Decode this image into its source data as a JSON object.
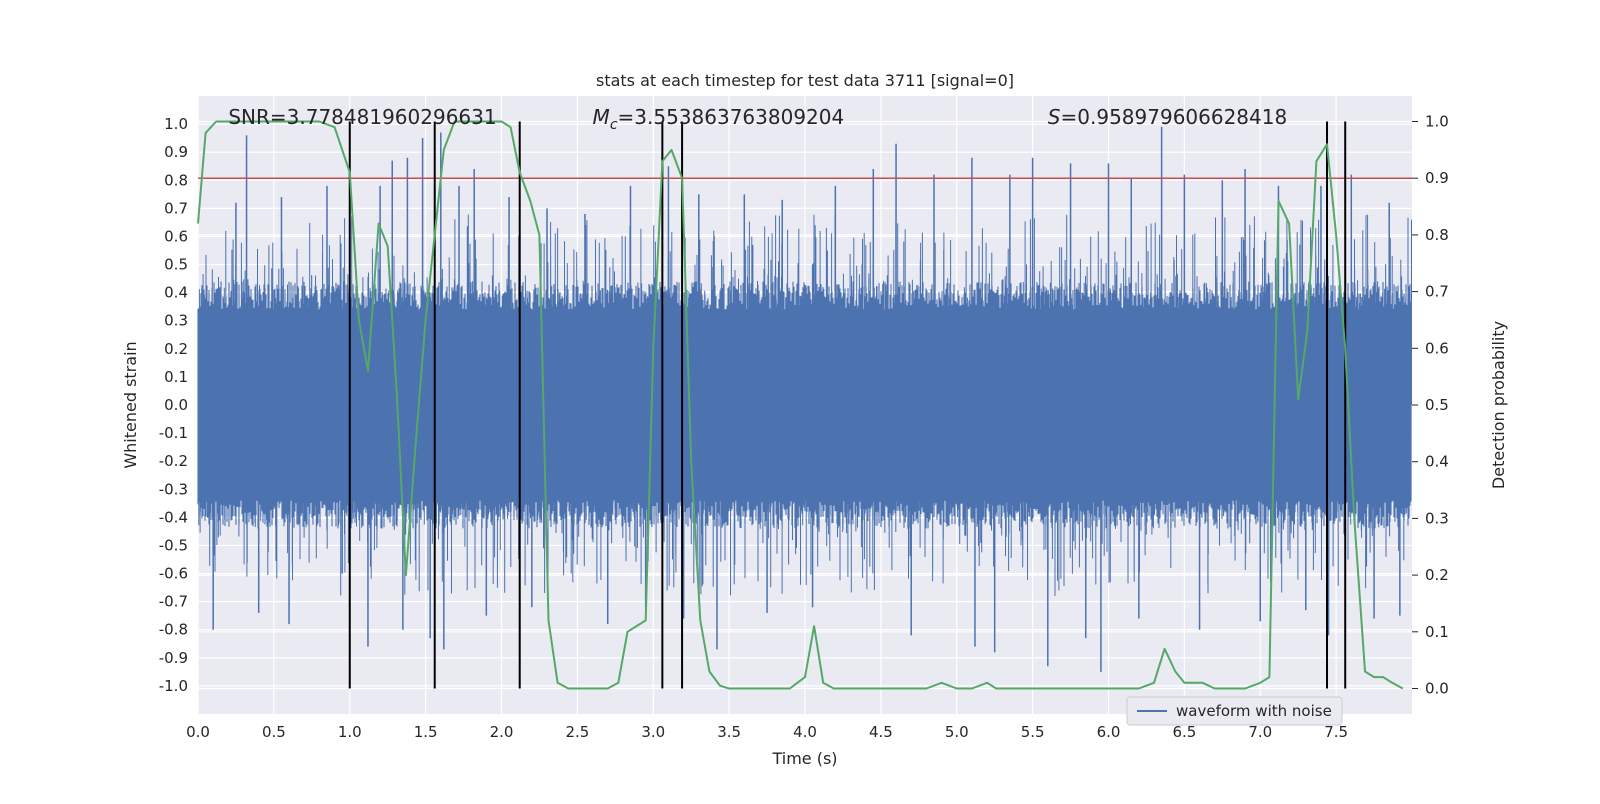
{
  "chart_data": {
    "type": "line",
    "title": "stats at each timestep for test data 3711 [signal=0]",
    "xlabel": "Time (s)",
    "ylabel": "Whitened strain",
    "y2label": "Detection probability",
    "xlim": [
      0.0,
      8.0
    ],
    "ylim": [
      -1.1,
      1.1
    ],
    "y2lim": [
      -0.045,
      1.045
    ],
    "xticks": [
      "0.0",
      "0.5",
      "1.0",
      "1.5",
      "2.0",
      "2.5",
      "3.0",
      "3.5",
      "4.0",
      "4.5",
      "5.0",
      "5.5",
      "6.0",
      "6.5",
      "7.0",
      "7.5"
    ],
    "yticks": [
      "1.0",
      "0.9",
      "0.8",
      "0.7",
      "0.6",
      "0.5",
      "0.4",
      "0.3",
      "0.2",
      "0.1",
      "0.0",
      "-0.1",
      "-0.2",
      "-0.3",
      "-0.4",
      "-0.5",
      "-0.6",
      "-0.7",
      "-0.8",
      "-0.9",
      "-1.0"
    ],
    "y2ticks": [
      "1.0",
      "0.9",
      "0.8",
      "0.7",
      "0.6",
      "0.5",
      "0.4",
      "0.3",
      "0.2",
      "0.1",
      "0.0"
    ],
    "annotations": {
      "snr": "SNR=3.778481960296631",
      "mc_symbol": "M",
      "mc_sub": "c",
      "mc_value": "=3.553863763809204",
      "s_symbol": "S",
      "s_value": "=0.958979606628418"
    },
    "legend": {
      "label": "waveform with noise",
      "placement": "lower-right"
    },
    "threshold": {
      "value": 0.9,
      "axis": "right",
      "color": "#c44e52"
    },
    "vlines_x": [
      1.0,
      1.56,
      2.12,
      3.06,
      3.19,
      7.44,
      7.56
    ],
    "series": [
      {
        "name": "waveform with noise",
        "color": "#4c72b0",
        "axis": "left",
        "core_envelope": 0.4,
        "spikes": [
          {
            "x": 0.32,
            "v": 0.96
          },
          {
            "x": 0.1,
            "v": -0.8
          },
          {
            "x": 0.25,
            "v": 0.72
          },
          {
            "x": 0.4,
            "v": -0.74
          },
          {
            "x": 0.55,
            "v": 0.74
          },
          {
            "x": 0.6,
            "v": -0.78
          },
          {
            "x": 0.85,
            "v": 0.78
          },
          {
            "x": 0.95,
            "v": -0.6
          },
          {
            "x": 1.12,
            "v": -0.86
          },
          {
            "x": 1.2,
            "v": 0.78
          },
          {
            "x": 1.28,
            "v": 0.87
          },
          {
            "x": 1.35,
            "v": -0.8
          },
          {
            "x": 1.38,
            "v": 0.88
          },
          {
            "x": 1.48,
            "v": 0.95
          },
          {
            "x": 1.53,
            "v": -0.83
          },
          {
            "x": 1.6,
            "v": 0.97
          },
          {
            "x": 1.62,
            "v": -0.87
          },
          {
            "x": 1.72,
            "v": 0.78
          },
          {
            "x": 1.82,
            "v": 0.84
          },
          {
            "x": 1.9,
            "v": -0.75
          },
          {
            "x": 2.05,
            "v": 0.74
          },
          {
            "x": 2.2,
            "v": -0.72
          },
          {
            "x": 2.3,
            "v": 0.7
          },
          {
            "x": 2.55,
            "v": 0.68
          },
          {
            "x": 2.7,
            "v": -0.78
          },
          {
            "x": 2.85,
            "v": 0.78
          },
          {
            "x": 2.95,
            "v": -0.72
          },
          {
            "x": 3.1,
            "v": 0.85
          },
          {
            "x": 3.2,
            "v": -0.76
          },
          {
            "x": 3.3,
            "v": 0.75
          },
          {
            "x": 3.42,
            "v": -0.87
          },
          {
            "x": 3.6,
            "v": 0.75
          },
          {
            "x": 3.75,
            "v": -0.74
          },
          {
            "x": 3.85,
            "v": 0.73
          },
          {
            "x": 4.05,
            "v": -0.72
          },
          {
            "x": 4.2,
            "v": 0.78
          },
          {
            "x": 4.45,
            "v": 0.84
          },
          {
            "x": 4.6,
            "v": 0.93
          },
          {
            "x": 4.7,
            "v": -0.82
          },
          {
            "x": 4.85,
            "v": 0.82
          },
          {
            "x": 5.1,
            "v": 0.88
          },
          {
            "x": 5.12,
            "v": -0.86
          },
          {
            "x": 5.25,
            "v": -0.88
          },
          {
            "x": 5.35,
            "v": 0.82
          },
          {
            "x": 5.5,
            "v": 0.88
          },
          {
            "x": 5.6,
            "v": -0.93
          },
          {
            "x": 5.75,
            "v": 0.86
          },
          {
            "x": 5.85,
            "v": -0.83
          },
          {
            "x": 5.95,
            "v": -0.95
          },
          {
            "x": 6.0,
            "v": 0.86
          },
          {
            "x": 6.15,
            "v": 0.81
          },
          {
            "x": 6.2,
            "v": -0.76
          },
          {
            "x": 6.35,
            "v": 0.99
          },
          {
            "x": 6.5,
            "v": 0.82
          },
          {
            "x": 6.6,
            "v": -0.8
          },
          {
            "x": 6.75,
            "v": 0.8
          },
          {
            "x": 6.9,
            "v": 0.84
          },
          {
            "x": 7.0,
            "v": -0.77
          },
          {
            "x": 7.12,
            "v": 0.78
          },
          {
            "x": 7.3,
            "v": -0.73
          },
          {
            "x": 7.4,
            "v": 0.78
          },
          {
            "x": 7.45,
            "v": -0.82
          },
          {
            "x": 7.6,
            "v": 0.82
          },
          {
            "x": 7.75,
            "v": -0.76
          },
          {
            "x": 7.85,
            "v": 0.72
          },
          {
            "x": 7.92,
            "v": -0.75
          }
        ]
      },
      {
        "name": "detection probability",
        "color": "#55a868",
        "axis": "right",
        "x": [
          0.0,
          0.05,
          0.12,
          0.2,
          0.3,
          0.4,
          0.5,
          0.6,
          0.7,
          0.8,
          0.9,
          1.0,
          1.06,
          1.12,
          1.19,
          1.25,
          1.31,
          1.37,
          1.44,
          1.5,
          1.56,
          1.62,
          1.69,
          1.75,
          1.81,
          1.87,
          1.94,
          2.0,
          2.06,
          2.12,
          2.19,
          2.25,
          2.31,
          2.37,
          2.44,
          2.5,
          2.6,
          2.7,
          2.77,
          2.83,
          2.89,
          2.95,
          3.0,
          3.06,
          3.12,
          3.19,
          3.25,
          3.31,
          3.37,
          3.44,
          3.5,
          3.6,
          3.7,
          3.8,
          3.9,
          4.0,
          4.06,
          4.12,
          4.19,
          4.25,
          4.35,
          4.5,
          4.6,
          4.7,
          4.8,
          4.9,
          5.0,
          5.1,
          5.2,
          5.26,
          5.3,
          5.4,
          5.5,
          5.6,
          5.7,
          5.8,
          5.9,
          6.0,
          6.1,
          6.2,
          6.3,
          6.37,
          6.44,
          6.5,
          6.56,
          6.62,
          6.7,
          6.8,
          6.9,
          7.0,
          7.06,
          7.12,
          7.19,
          7.25,
          7.31,
          7.37,
          7.44,
          7.5,
          7.56,
          7.62,
          7.69,
          7.75,
          7.81,
          7.87,
          7.94
        ],
        "values": [
          0.82,
          0.98,
          1.0,
          1.0,
          1.0,
          1.0,
          1.0,
          1.0,
          1.0,
          1.0,
          0.99,
          0.91,
          0.65,
          0.56,
          0.82,
          0.78,
          0.52,
          0.2,
          0.45,
          0.65,
          0.8,
          0.95,
          1.0,
          1.0,
          1.0,
          1.0,
          1.0,
          1.0,
          0.99,
          0.91,
          0.86,
          0.8,
          0.12,
          0.01,
          0.0,
          0.0,
          0.0,
          0.0,
          0.01,
          0.1,
          0.11,
          0.12,
          0.6,
          0.93,
          0.95,
          0.9,
          0.4,
          0.12,
          0.03,
          0.005,
          0.0,
          0.0,
          0.0,
          0.0,
          0.0,
          0.02,
          0.11,
          0.01,
          0.0,
          0.0,
          0.0,
          0.0,
          0.0,
          0.0,
          0.0,
          0.01,
          0.0,
          0.0,
          0.01,
          0.0,
          0.0,
          0.0,
          0.0,
          0.0,
          0.0,
          0.0,
          0.0,
          0.0,
          0.0,
          0.0,
          0.01,
          0.07,
          0.03,
          0.01,
          0.01,
          0.01,
          0.0,
          0.0,
          0.0,
          0.01,
          0.02,
          0.86,
          0.82,
          0.51,
          0.63,
          0.93,
          0.96,
          0.8,
          0.6,
          0.3,
          0.03,
          0.02,
          0.02,
          0.01,
          0.0
        ]
      }
    ]
  }
}
